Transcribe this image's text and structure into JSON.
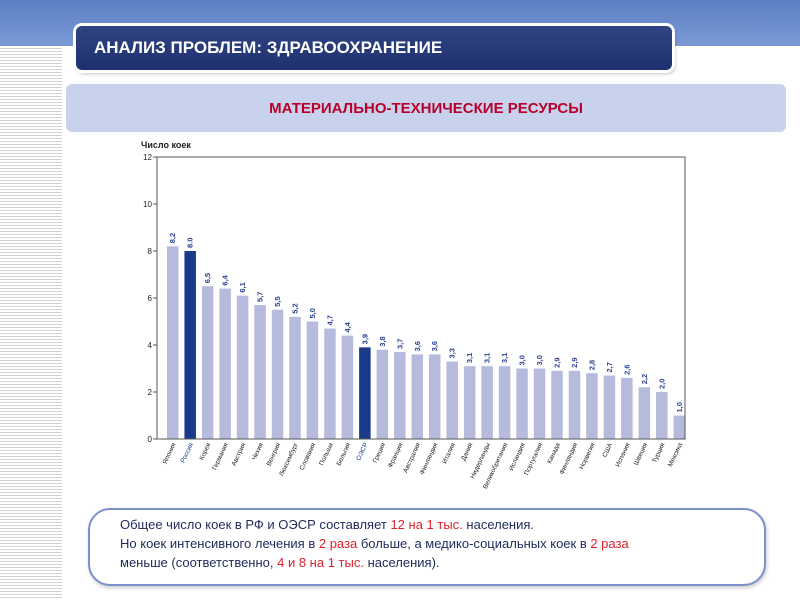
{
  "header": {
    "title": "АНАЛИЗ ПРОБЛЕМ: ЗДРАВООХРАНЕНИЕ",
    "subtitle": "МАТЕРИАЛЬНО-ТЕХНИЧЕСКИЕ РЕСУРСЫ"
  },
  "colors": {
    "bar_default": "#b6bbdd",
    "bar_highlight": "#1a3a8a",
    "accent_red": "#e0212d"
  },
  "chart_data": {
    "type": "bar",
    "ylabel": "Число коек",
    "ylim": [
      0,
      12
    ],
    "yticks": [
      0,
      2,
      4,
      6,
      8,
      10,
      12
    ],
    "grid": false,
    "categories": [
      "Япония",
      "Россия",
      "Корея",
      "Германия",
      "Австрия",
      "Чехия",
      "Венгрия",
      "Люксембург",
      "Словакия",
      "Польша",
      "Бельгия",
      "ОЭСР",
      "Греция",
      "Франция",
      "Австралия",
      "Финляндия",
      "Италия",
      "Дания",
      "Нидерланды",
      "Великобритания",
      "Исландия",
      "Португалия",
      "Канада",
      "Финляндия",
      "Норвегия",
      "США",
      "Испания",
      "Швеция",
      "Турция",
      "Мексика"
    ],
    "values": [
      8.2,
      8.0,
      6.5,
      6.4,
      6.1,
      5.7,
      5.5,
      5.2,
      5.0,
      4.7,
      4.4,
      3.9,
      3.8,
      3.7,
      3.6,
      3.6,
      3.3,
      3.1,
      3.1,
      3.1,
      3.0,
      3.0,
      2.9,
      2.9,
      2.8,
      2.7,
      2.6,
      2.2,
      2.0,
      1.0
    ],
    "value_labels": [
      "8,2",
      "8.0",
      "6,5",
      "6,4",
      "6,1",
      "5,7",
      "5,5",
      "5,2",
      "5,0",
      "4,7",
      "4,4",
      "3,9",
      "3,8",
      "3,7",
      "3,6",
      "3,6",
      "3,3",
      "3,1",
      "3,1",
      "3,1",
      "3,0",
      "3,0",
      "2,9",
      "2,9",
      "2,8",
      "2,7",
      "2,6",
      "2,2",
      "2,0",
      "1,0"
    ],
    "highlighted": [
      "Россия",
      "ОЭСР"
    ]
  },
  "note": {
    "line1_a": "Общее число коек в РФ и ОЭСР составляет ",
    "line1_b": "12 на 1 тыс.",
    "line1_c": " населения.",
    "line2_a": "Но коек интенсивного  лечения в ",
    "line2_b": "2 раза",
    "line2_c": " больше, а медико-социальных коек в ",
    "line2_d": "2 раза",
    "line3_a": "меньше (соответственно, ",
    "line3_b": "4 и 8 на 1 тыс.",
    "line3_c": "  населения)."
  }
}
